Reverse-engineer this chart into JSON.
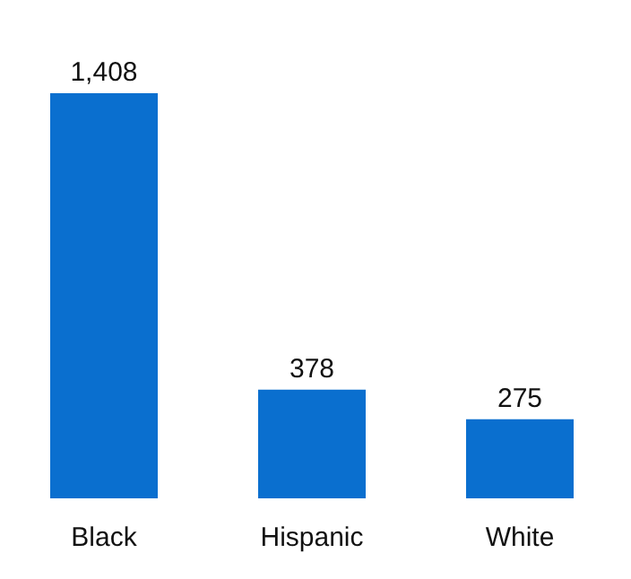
{
  "chart_data": {
    "type": "bar",
    "categories": [
      "Black",
      "Hispanic",
      "White"
    ],
    "values": [
      1408,
      378,
      275
    ],
    "color": "#0a6fcf",
    "value_labels": [
      "1,408",
      "378",
      "275"
    ]
  }
}
